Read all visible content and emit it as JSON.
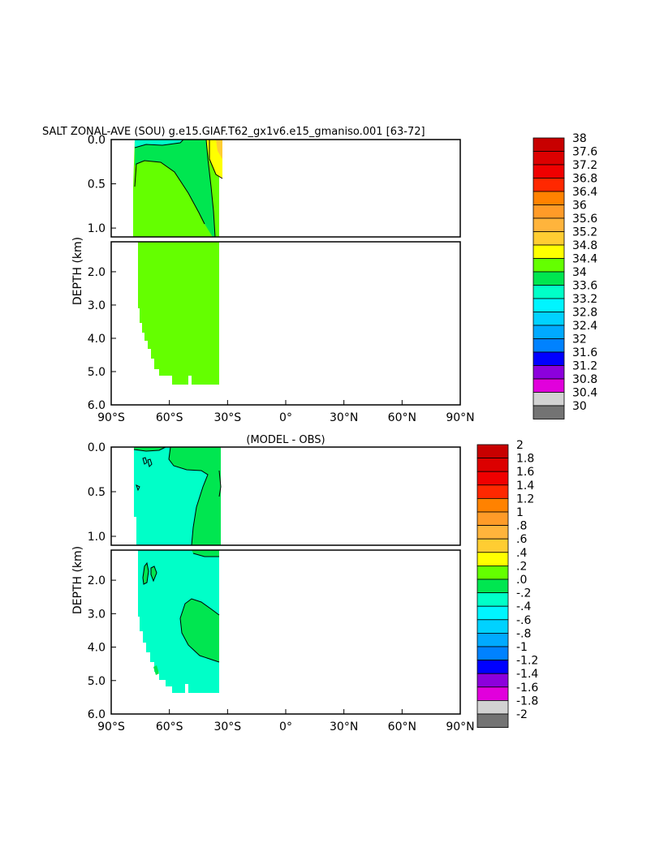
{
  "chart_data": [
    {
      "type": "heatmap",
      "title": "SALT ZONAL-AVE (SOU) g.e15.GIAF.T62_gx1v6.e15_gmaniso.001 [63-72]",
      "xlabel": "",
      "ylabel": "DEPTH (km)",
      "x_ticks": [
        "90°S",
        "60°S",
        "30°S",
        "0°",
        "30°N",
        "60°N",
        "90°N"
      ],
      "y_ticks": [
        "0.0",
        "0.5",
        "1.0",
        "2.0",
        "3.0",
        "4.0",
        "5.0",
        "6.0"
      ],
      "xlim": [
        -90,
        90
      ],
      "ylim": [
        6.0,
        0.0
      ],
      "colorbar_labels": [
        "38",
        "37.6",
        "37.2",
        "36.8",
        "36.4",
        "36",
        "35.6",
        "35.2",
        "34.8",
        "34.4",
        "34",
        "33.6",
        "33.2",
        "32.8",
        "32.4",
        "32",
        "31.6",
        "31.2",
        "30.8",
        "30.4",
        "30"
      ],
      "data_extent": {
        "lat_min": -78,
        "lat_max": -34,
        "depth_max_km": 5.4
      },
      "dominant_value_range": [
        34.0,
        34.4
      ],
      "features": [
        {
          "value_range": [
            33.6,
            34.0
          ],
          "lat_range": [
            -76,
            -50
          ],
          "depth_range_km": [
            0.0,
            0.05
          ]
        },
        {
          "value_range": [
            34.4,
            34.8
          ],
          "lat_range": [
            -78,
            -34
          ],
          "depth_range_km": [
            0.0,
            0.3
          ]
        },
        {
          "value_range": [
            34.8,
            35.2
          ],
          "lat_range": [
            -38,
            -34
          ],
          "depth_range_km": [
            0.0,
            0.25
          ]
        },
        {
          "value_range": [
            35.2,
            35.6
          ],
          "lat_range": [
            -35,
            -34
          ],
          "depth_range_km": [
            0.0,
            0.06
          ]
        }
      ]
    },
    {
      "type": "heatmap",
      "title": "(MODEL - OBS)",
      "xlabel": "",
      "ylabel": "DEPTH (km)",
      "x_ticks": [
        "90°S",
        "60°S",
        "30°S",
        "0°",
        "30°N",
        "60°N",
        "90°N"
      ],
      "y_ticks": [
        "0.0",
        "0.5",
        "1.0",
        "2.0",
        "3.0",
        "4.0",
        "5.0",
        "6.0"
      ],
      "xlim": [
        -90,
        90
      ],
      "ylim": [
        6.0,
        0.0
      ],
      "colorbar_labels": [
        "2",
        "1.8",
        "1.6",
        "1.4",
        "1.2",
        "1",
        ".8",
        ".6",
        ".4",
        ".2",
        ".0",
        "-.2",
        "-.4",
        "-.6",
        "-.8",
        "-1",
        "-1.2",
        "-1.4",
        "-1.6",
        "-1.8",
        "-2"
      ],
      "data_extent": {
        "lat_min": -78,
        "lat_max": -34,
        "depth_max_km": 5.4
      },
      "dominant_value_range": [
        -0.2,
        0.0
      ],
      "features": [
        {
          "value_range": [
            0.0,
            0.2
          ],
          "lat_range": [
            -60,
            -34
          ],
          "depth_range_km": [
            0.0,
            0.3
          ]
        },
        {
          "value_range": [
            0.0,
            0.2
          ],
          "lat_range": [
            -48,
            -34
          ],
          "depth_range_km": [
            0.3,
            1.2
          ]
        },
        {
          "value_range": [
            0.0,
            0.2
          ],
          "lat_range": [
            -54,
            -34
          ],
          "depth_range_km": [
            2.5,
            4.4
          ]
        },
        {
          "value_range": [
            0.0,
            0.2
          ],
          "lat_range": [
            -74,
            -72
          ],
          "depth_range_km": [
            1.7,
            2.1
          ]
        },
        {
          "value_range": [
            0.0,
            0.2
          ],
          "lat_range": [
            -68,
            -66
          ],
          "depth_range_km": [
            4.8,
            5.2
          ]
        }
      ]
    }
  ],
  "colors": {
    "levels_top_to_bottom": [
      "#c80000",
      "#dc0000",
      "#f00000",
      "#ff2800",
      "#ff8200",
      "#ff9b28",
      "#ffb43c",
      "#ffcd32",
      "#ffff00",
      "#64ff00",
      "#00e650",
      "#00ffc8",
      "#00f5ff",
      "#00d2ff",
      "#00aaff",
      "#0082ff",
      "#0000ff",
      "#8c00dc",
      "#e100dc",
      "#d2d2d2",
      "#737373"
    ],
    "land": "#ffffff",
    "frame": "#000000"
  }
}
